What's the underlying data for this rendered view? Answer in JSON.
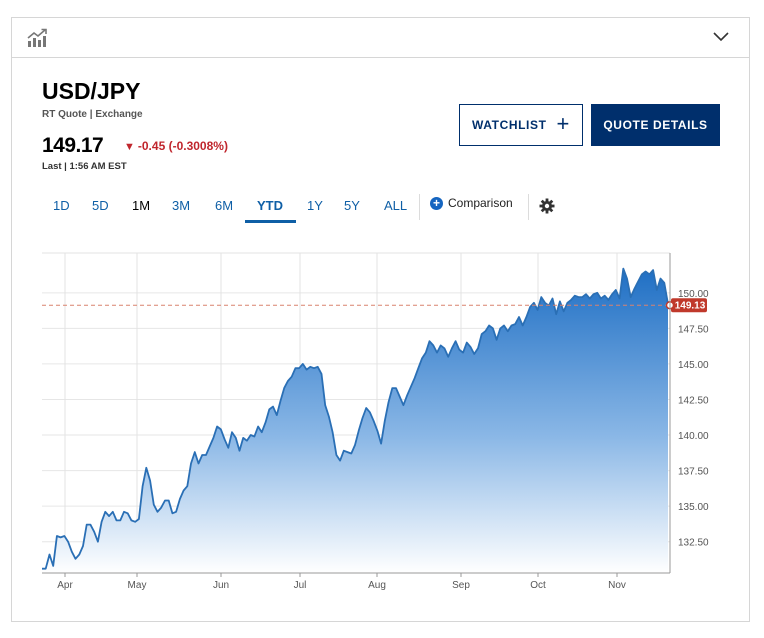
{
  "header": {
    "chart_icon": "chart-icon",
    "collapse_icon": "chevron-down-icon"
  },
  "quote": {
    "symbol": "USD/JPY",
    "source": "RT Quote | Exchange",
    "last": "149.17",
    "change": "-0.45 (-0.3008%)",
    "direction_icon": "triangle-down-icon",
    "timestamp": "Last | 1:56 AM EST"
  },
  "buttons": {
    "watchlist": "WATCHLIST",
    "quote_details": "QUOTE DETAILS"
  },
  "ranges": [
    "1D",
    "5D",
    "1M",
    "3M",
    "6M",
    "YTD",
    "1Y",
    "5Y",
    "ALL"
  ],
  "active_range": "YTD",
  "comparison": "Comparison",
  "colors": {
    "accent": "#0f5fa6",
    "brand": "#002f6c",
    "down": "#c0262d",
    "line": "#2a6fb5",
    "badge": "#c0392b"
  },
  "chart_data": {
    "type": "area",
    "title": "",
    "xlabel": "",
    "ylabel": "",
    "x_ticks": [
      "Apr",
      "May",
      "Jun",
      "Jul",
      "Aug",
      "Sep",
      "Oct",
      "Nov"
    ],
    "y_ticks": [
      "132.50",
      "135.00",
      "137.50",
      "140.00",
      "142.50",
      "145.00",
      "147.50",
      "150.00"
    ],
    "ylim": [
      130.3,
      152.8
    ],
    "reference_value": 149.13,
    "reference_label": "149.13",
    "grid": true,
    "series": [
      {
        "values": [
          130.6,
          130.6,
          131.6,
          130.8,
          132.9,
          132.8,
          132.9,
          132.5,
          131.8,
          131.3,
          131.6,
          132.2,
          133.7,
          133.7,
          133.2,
          132.5,
          133.9,
          134.6,
          134.3,
          134.6,
          134.0,
          134.0,
          134.6,
          134.5,
          134.0,
          133.9,
          134.1,
          136.4,
          137.7,
          136.8,
          135.1,
          134.6,
          134.9,
          135.4,
          135.4,
          134.5,
          134.6,
          135.5,
          136.1,
          136.4,
          138.0,
          138.8,
          138.0,
          138.6,
          138.6,
          139.2,
          139.8,
          140.6,
          140.4,
          139.7,
          139.1,
          140.2,
          139.8,
          138.9,
          139.8,
          139.6,
          140.0,
          139.9,
          140.6,
          140.2,
          140.9,
          141.8,
          142.0,
          141.4,
          142.4,
          143.3,
          143.8,
          144.1,
          144.7,
          144.7,
          145.0,
          144.6,
          144.8,
          144.7,
          144.8,
          144.3,
          142.1,
          141.3,
          140.2,
          138.6,
          138.2,
          138.9,
          138.8,
          138.7,
          139.3,
          140.3,
          141.2,
          141.9,
          141.6,
          141.0,
          140.3,
          139.4,
          141.0,
          142.3,
          143.3,
          143.3,
          142.7,
          142.1,
          142.8,
          143.4,
          144.0,
          144.7,
          145.4,
          145.8,
          146.6,
          146.3,
          145.8,
          146.3,
          146.1,
          145.5,
          146.1,
          146.6,
          146.0,
          145.8,
          146.5,
          146.2,
          145.7,
          146.1,
          147.1,
          147.3,
          147.7,
          147.5,
          146.7,
          147.5,
          147.7,
          147.3,
          147.7,
          147.8,
          148.3,
          147.7,
          148.3,
          149.0,
          149.3,
          148.8,
          149.7,
          149.3,
          149.1,
          149.6,
          148.5,
          149.4,
          148.7,
          149.3,
          149.5,
          149.8,
          149.7,
          149.7,
          149.9,
          149.6,
          149.9,
          150.0,
          149.6,
          149.8,
          149.5,
          149.9,
          150.2,
          149.6,
          151.7,
          151.0,
          149.7,
          150.3,
          150.8,
          151.3,
          151.5,
          151.3,
          151.6,
          150.2,
          151.0,
          150.7,
          149.2
        ]
      }
    ]
  }
}
